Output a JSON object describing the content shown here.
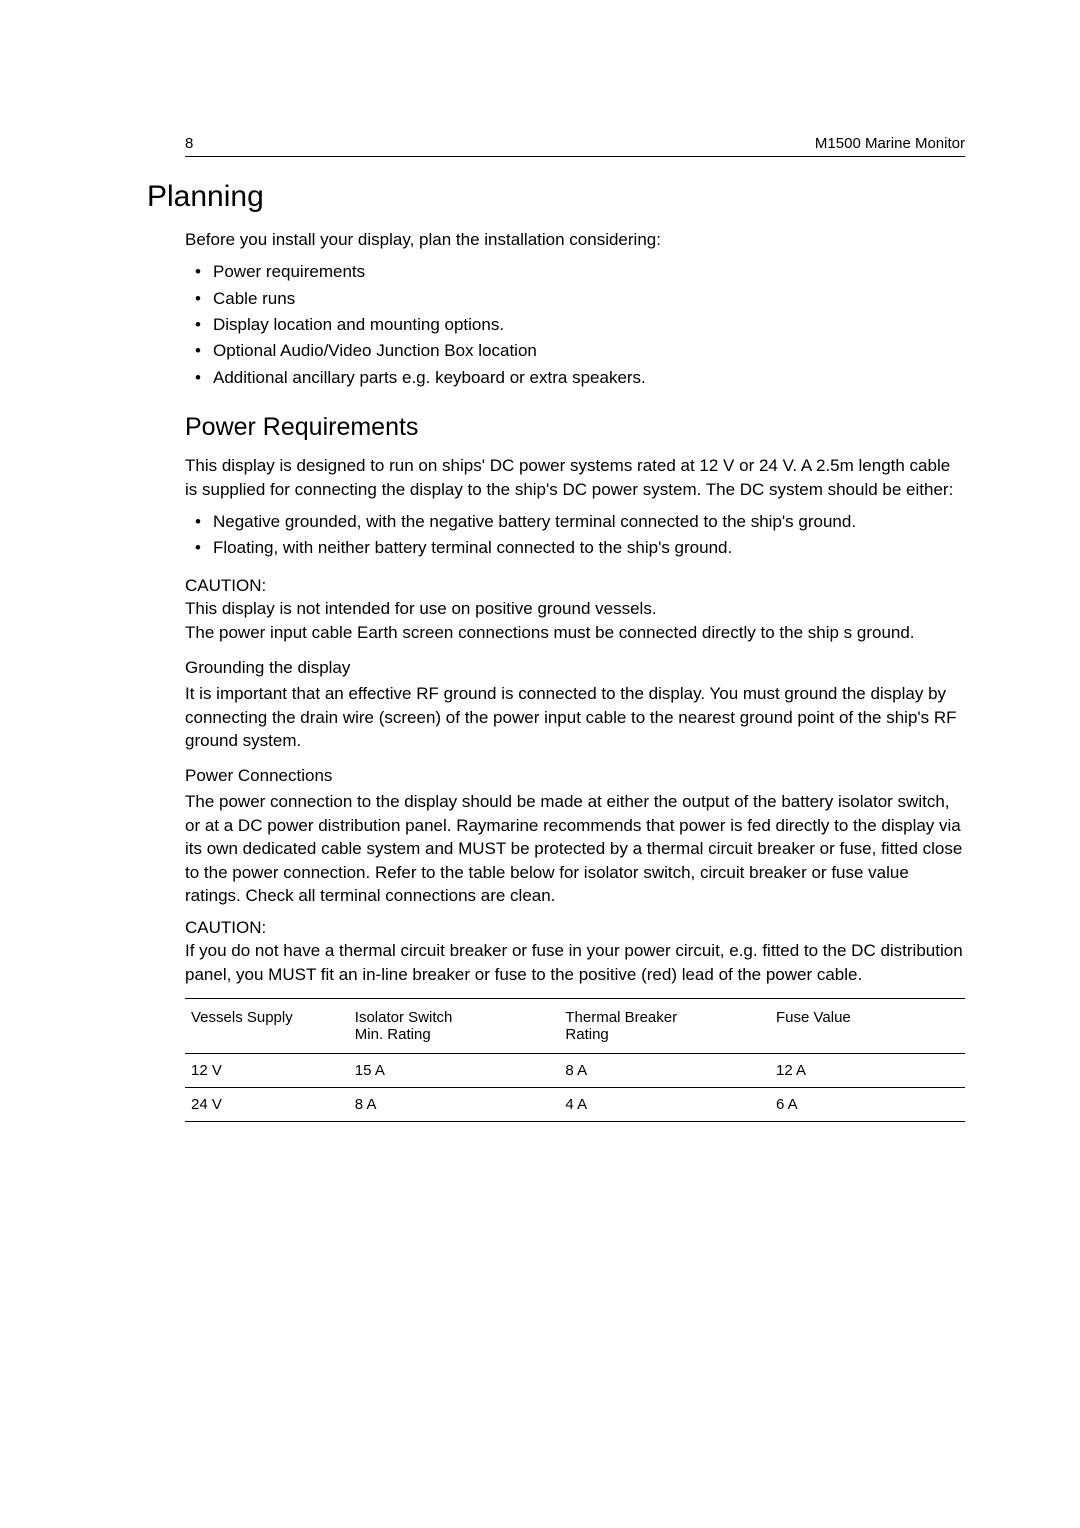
{
  "header": {
    "page_number": "8",
    "doc_title": "M1500 Marine Monitor"
  },
  "section": {
    "title": "Planning",
    "intro": "Before you install your display, plan the installation considering:",
    "bullets": [
      "Power requirements",
      "Cable runs",
      "Display location and mounting options.",
      "Optional Audio/Video Junction Box location",
      "Additional ancillary parts e.g. keyboard or extra speakers."
    ]
  },
  "power_req": {
    "title": "Power Requirements",
    "para": "This display is designed to run on ships' DC power systems rated at 12 V or 24 V. A 2.5m length cable is supplied for connecting the display to the ship's DC power system. The DC system should be either:",
    "bullets": [
      "Negative grounded, with the negative battery terminal connected to the ship's ground.",
      "Floating, with neither battery terminal connected to the ship's ground."
    ],
    "caution_label": "CAUTION:",
    "caution_text": "This display is not intended for use on  positive  ground vessels.\nThe power input cable Earth screen connections must be connected directly to the ship s ground."
  },
  "grounding": {
    "title": "Grounding the display",
    "para": "It is important that an effective RF ground is connected to the display. You must ground the display by connecting the drain wire (screen) of the power input cable to the nearest ground point of the ship's RF ground system."
  },
  "connections": {
    "title": "Power Connections",
    "para": "The power connection to the display should be made at either the output of the battery isolator switch, or at a DC power distribution panel. Raymarine recommends that power is fed directly to the display via its own dedicated cable system and MUST be protected by a thermal circuit breaker or fuse, fitted close to the power connection. Refer to the table below for isolator switch, circuit breaker or fuse value ratings. Check all terminal connections are clean.",
    "caution_label": "CAUTION:",
    "caution_text": "If you do not have a thermal circuit breaker or fuse in your power circuit, e.g. fitted to the DC distribution panel, you MUST fit an in-line breaker or fuse to the positive (red) lead of the power cable."
  },
  "table": {
    "columns": [
      "Vessels Supply",
      "Isolator Switch Min. Rating",
      "Thermal Breaker Rating",
      "Fuse Value"
    ],
    "col_line2": [
      "",
      "Min. Rating",
      "Rating",
      ""
    ],
    "col_line1": [
      "Vessels Supply",
      "Isolator Switch",
      "Thermal Breaker",
      "Fuse Value"
    ],
    "rows": [
      [
        "12 V",
        "15 A",
        "8 A",
        "12 A"
      ],
      [
        "24 V",
        "8 A",
        "4 A",
        "6 A"
      ]
    ]
  }
}
